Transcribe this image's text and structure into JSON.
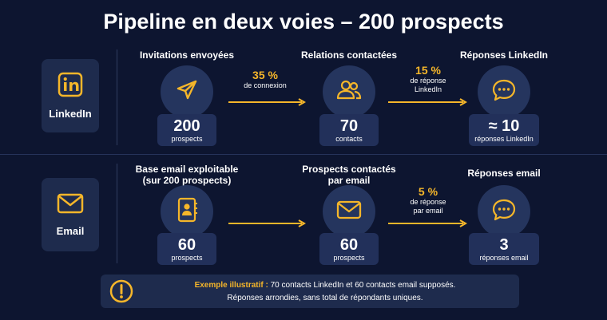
{
  "title": "Pipeline en deux voies – 200 prospects",
  "colors": {
    "background": "#0d1530",
    "accent": "#f5b62a",
    "panel": "#1e2b4d"
  },
  "linkedin": {
    "channel_label": "LinkedIn",
    "channel_icon": "linkedin-icon",
    "stage1": {
      "title": "Invitations envoyées",
      "icon": "send-icon",
      "value": "200",
      "unit": "prospects"
    },
    "rate1": {
      "pct": "35 %",
      "text": "de connexion"
    },
    "stage2": {
      "title": "Relations contactées",
      "icon": "users-icon",
      "value": "70",
      "unit": "contacts"
    },
    "rate2": {
      "pct": "15 %",
      "text1": "de réponse",
      "text2": "LinkedIn"
    },
    "stage3": {
      "title": "Réponses LinkedIn",
      "icon": "chat-bubble-icon",
      "value": "≈ 10",
      "unit": "réponses LinkedIn"
    }
  },
  "email": {
    "channel_label": "Email",
    "channel_icon": "envelope-icon",
    "stage1": {
      "title1": "Base email exploitable",
      "title2": "(sur 200 prospects)",
      "icon": "contact-book-icon",
      "value": "60",
      "unit": "prospects"
    },
    "stage2": {
      "title1": "Prospects contactés",
      "title2": "par email",
      "icon": "envelope-icon",
      "value": "60",
      "unit": "prospects"
    },
    "rate2": {
      "pct": "5 %",
      "text1": "de réponse",
      "text2": "par email"
    },
    "stage3": {
      "title": "Réponses email",
      "icon": "chat-bubble-icon",
      "value": "3",
      "unit": "réponses email"
    }
  },
  "note": {
    "icon": "exclamation-icon",
    "highlight": "Exemple illustratif :",
    "line1": " 70 contacts LinkedIn et 60 contacts email supposés.",
    "line2": "Réponses arrondies, sans total de répondants uniques."
  }
}
